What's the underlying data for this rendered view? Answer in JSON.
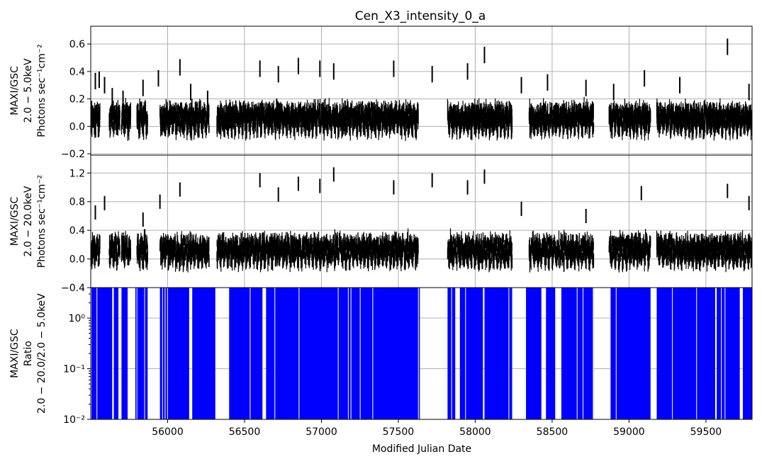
{
  "chart_data": {
    "type": "line",
    "title": "Cen_X3_intensity_0_a",
    "xlabel": "Modified Julian Date",
    "xlim": [
      55500,
      59800
    ],
    "x_ticks": [
      "56000",
      "56500",
      "57000",
      "57500",
      "58000",
      "58500",
      "59000",
      "59500"
    ],
    "grid": true,
    "panels": [
      {
        "name": "soft",
        "ylabel_lines": [
          "MAXI/GSC",
          "2.0 − 5.0keV",
          "Photons sec⁻¹cm⁻²"
        ],
        "ylim": [
          -0.21,
          0.73
        ],
        "y_ticks": [
          -0.2,
          0.0,
          0.2,
          0.4,
          0.6
        ],
        "y_tick_labels": [
          "−0.2",
          "0.0",
          "0.2",
          "0.4",
          "0.6"
        ],
        "color": "#000000",
        "peaks": [
          [
            55530,
            0.33
          ],
          [
            55555,
            0.34
          ],
          [
            55590,
            0.3
          ],
          [
            55640,
            0.22
          ],
          [
            55710,
            0.2
          ],
          [
            55840,
            0.28
          ],
          [
            55940,
            0.35
          ],
          [
            56080,
            0.43
          ],
          [
            56150,
            0.25
          ],
          [
            56260,
            0.2
          ],
          [
            56600,
            0.42
          ],
          [
            56720,
            0.38
          ],
          [
            56850,
            0.44
          ],
          [
            56990,
            0.42
          ],
          [
            57080,
            0.4
          ],
          [
            57470,
            0.42
          ],
          [
            57720,
            0.38
          ],
          [
            57950,
            0.4
          ],
          [
            58060,
            0.52
          ],
          [
            58300,
            0.3
          ],
          [
            58470,
            0.32
          ],
          [
            58720,
            0.28
          ],
          [
            58900,
            0.25
          ],
          [
            59100,
            0.35
          ],
          [
            59330,
            0.3
          ],
          [
            59640,
            0.58
          ],
          [
            59780,
            0.25
          ]
        ],
        "visible_segments": [
          [
            55500,
            55560
          ],
          [
            55620,
            55690
          ],
          [
            55700,
            55760
          ],
          [
            55800,
            55870
          ],
          [
            55950,
            56270
          ],
          [
            56320,
            57630
          ],
          [
            57820,
            58240
          ],
          [
            58350,
            58770
          ],
          [
            58870,
            59140
          ],
          [
            59180,
            59800
          ]
        ]
      },
      {
        "name": "hard",
        "ylabel_lines": [
          "MAXI/GSC",
          "2.0 − 20.0keV",
          "Photons sec⁻¹cm⁻²"
        ],
        "ylim": [
          -0.4,
          1.45
        ],
        "y_ticks": [
          -0.4,
          0.0,
          0.4,
          0.8,
          1.2
        ],
        "y_tick_labels": [
          "−0.4",
          "0.0",
          "0.4",
          "0.8",
          "1.2"
        ],
        "color": "#000000",
        "peaks": [
          [
            55530,
            0.65
          ],
          [
            55590,
            0.78
          ],
          [
            55840,
            0.55
          ],
          [
            55950,
            0.8
          ],
          [
            56080,
            0.97
          ],
          [
            56600,
            1.1
          ],
          [
            56720,
            0.9
          ],
          [
            56850,
            1.05
          ],
          [
            56990,
            1.02
          ],
          [
            57080,
            1.18
          ],
          [
            57470,
            1.0
          ],
          [
            57720,
            1.1
          ],
          [
            57950,
            1.0
          ],
          [
            58060,
            1.15
          ],
          [
            58300,
            0.7
          ],
          [
            58720,
            0.6
          ],
          [
            59080,
            0.92
          ],
          [
            59640,
            0.95
          ],
          [
            59780,
            0.78
          ]
        ],
        "visible_segments": [
          [
            55500,
            55560
          ],
          [
            55620,
            55690
          ],
          [
            55700,
            55760
          ],
          [
            55800,
            55870
          ],
          [
            55950,
            56270
          ],
          [
            56320,
            57630
          ],
          [
            57820,
            58240
          ],
          [
            58350,
            58770
          ],
          [
            58870,
            59140
          ],
          [
            59180,
            59800
          ]
        ]
      },
      {
        "name": "ratio",
        "ylabel_lines": [
          "MAXI/GSC",
          "Ratio",
          "2.0 − 20.0/2.0 − 5.0keV"
        ],
        "yscale": "log",
        "ylim": [
          0.01,
          4.0
        ],
        "y_ticks": [
          0.01,
          0.1,
          1.0
        ],
        "y_tick_labels": [
          "10⁻²",
          "10⁻¹",
          "10⁰"
        ],
        "color": "#0000ff",
        "filled_segments": [
          [
            55505,
            55640
          ],
          [
            55650,
            55680
          ],
          [
            55700,
            55740
          ],
          [
            55790,
            55870
          ],
          [
            55950,
            56140
          ],
          [
            56160,
            56310
          ],
          [
            56400,
            56620
          ],
          [
            56640,
            57640
          ],
          [
            57820,
            57870
          ],
          [
            57900,
            58050
          ],
          [
            58060,
            58240
          ],
          [
            58330,
            58430
          ],
          [
            58460,
            58520
          ],
          [
            58560,
            58770
          ],
          [
            58880,
            59140
          ],
          [
            59180,
            59560
          ],
          [
            59570,
            59720
          ],
          [
            59740,
            59800
          ]
        ]
      }
    ]
  }
}
